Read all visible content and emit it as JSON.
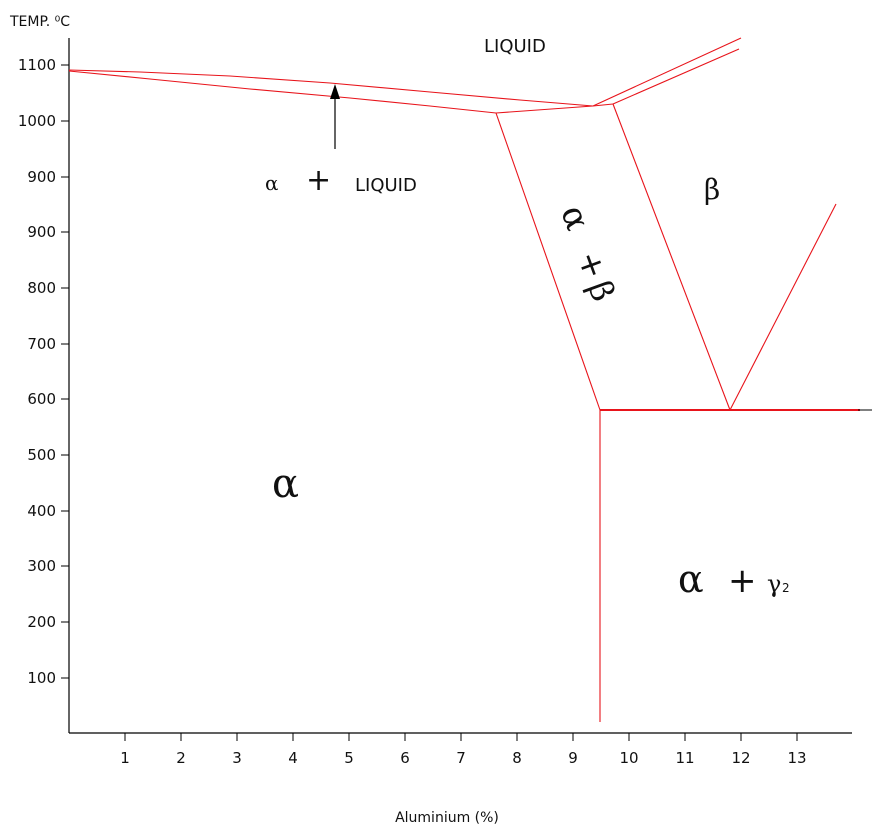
{
  "y_axis": {
    "title": "TEMP. ⁰C",
    "ticks": [
      "1100",
      "1000",
      "900",
      "900",
      "800",
      "700",
      "600",
      "500",
      "400",
      "300",
      "200",
      "100"
    ]
  },
  "x_axis": {
    "title": "Aluminium (%)",
    "ticks": [
      "1",
      "2",
      "3",
      "4",
      "5",
      "6",
      "7",
      "8",
      "9",
      "10",
      "11",
      "12",
      "13"
    ]
  },
  "regions": {
    "liquid": "LIQUID",
    "alpha_liquid_symbol": "α",
    "alpha_liquid_plus": "+",
    "alpha_liquid_text": "LIQUID",
    "beta": "β",
    "alpha_beta_alpha": "α",
    "alpha_beta_plus": "+",
    "alpha_beta_beta": "β",
    "alpha": "α",
    "alpha_gamma_alpha": "α",
    "alpha_gamma_plus": "+",
    "alpha_gamma_gamma": "γ",
    "alpha_gamma_sub": "2"
  },
  "colors": {
    "boundary": "#e8141b",
    "axis": "#000000"
  }
}
